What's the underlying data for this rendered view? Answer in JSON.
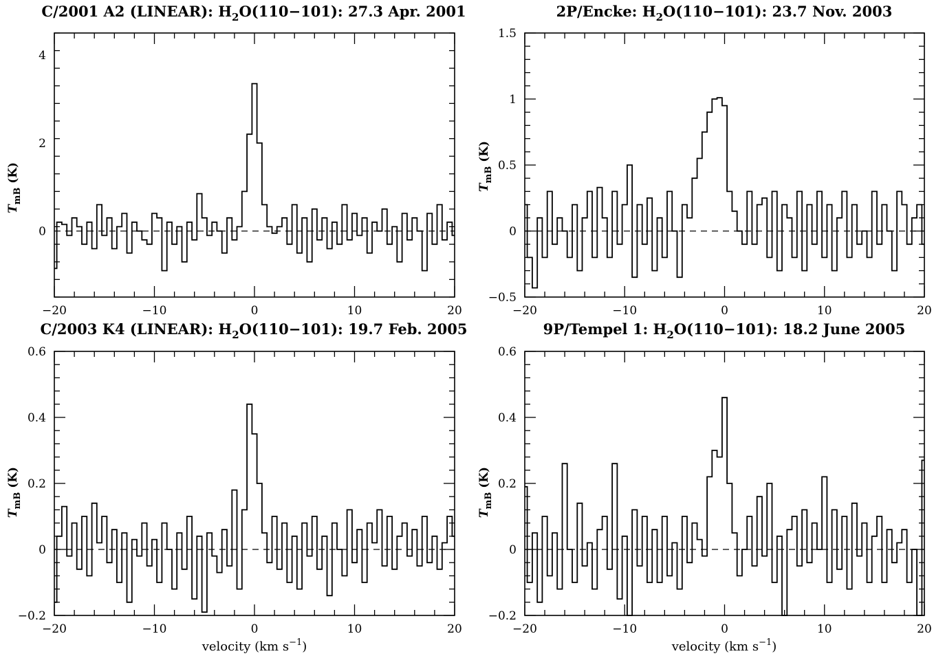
{
  "figure": {
    "xlabel": "velocity (km s",
    "xlabel_sup": "−1",
    "xlabel_close": ")"
  },
  "chart_data": [
    {
      "type": "line",
      "title_prefix": "C/2001 A2 (LINEAR): H",
      "title_sub": "2",
      "title_suffix": "O(110−101): 27.3 Apr. 2001",
      "ylabel": "T",
      "ylabel_sub": "mB",
      "ylabel_unit": " (K)",
      "xlim": [
        -20,
        20
      ],
      "ylim": [
        -1.5,
        4.5
      ],
      "xticks": [
        -20,
        -10,
        0,
        10,
        20
      ],
      "xtick_labels": [
        "−20",
        "−10",
        "0",
        "10",
        "20"
      ],
      "yticks": [
        0,
        2,
        4
      ],
      "ytick_labels": [
        "0",
        "2",
        "4"
      ],
      "zero_line": true,
      "series": [
        {
          "x": [
            -20,
            -19.5,
            -19,
            -18.5,
            -18,
            -17.5,
            -17,
            -16.5,
            -16,
            -15.5,
            -15,
            -14.5,
            -14,
            -13.5,
            -13,
            -12.5,
            -12,
            -11.5,
            -11,
            -10.5,
            -10,
            -9.5,
            -9,
            -8.5,
            -8,
            -7.5,
            -7,
            -6.5,
            -6,
            -5.5,
            -5,
            -4.5,
            -4,
            -3.5,
            -3,
            -2.5,
            -2,
            -1.5,
            -1,
            -0.5,
            0,
            0.5,
            1,
            1.5,
            2,
            2.5,
            3,
            3.5,
            4,
            4.5,
            5,
            5.5,
            6,
            6.5,
            7,
            7.5,
            8,
            8.5,
            9,
            9.5,
            10,
            10.5,
            11,
            11.5,
            12,
            12.5,
            13,
            13.5,
            14,
            14.5,
            15,
            15.5,
            16,
            16.5,
            17,
            17.5,
            18,
            18.5,
            19,
            19.5,
            20
          ],
          "y": [
            -0.85,
            0.2,
            0.15,
            -0.1,
            0.3,
            0.1,
            -0.3,
            0.2,
            -0.4,
            0.6,
            -0.1,
            0.3,
            -0.4,
            0.1,
            0.4,
            -0.5,
            0.2,
            0.0,
            -0.2,
            -0.3,
            0.4,
            0.3,
            -0.9,
            0.2,
            -0.3,
            0.1,
            -0.7,
            0.2,
            -0.2,
            0.85,
            0.3,
            -0.1,
            0.2,
            0.0,
            -0.5,
            0.3,
            -0.2,
            0.1,
            0.9,
            2.2,
            3.35,
            2.0,
            0.6,
            0.1,
            -0.05,
            0.1,
            0.3,
            -0.3,
            0.6,
            -0.5,
            0.3,
            -0.7,
            0.5,
            -0.2,
            0.3,
            -0.4,
            0.2,
            -0.3,
            0.6,
            -0.2,
            0.4,
            -0.1,
            0.3,
            -0.5,
            0.2,
            0.0,
            0.5,
            -0.3,
            0.1,
            -0.7,
            0.4,
            -0.2,
            0.3,
            0.0,
            -0.9,
            0.4,
            -0.3,
            0.6,
            -0.2,
            0.2,
            -0.1
          ]
        }
      ]
    },
    {
      "type": "line",
      "title_prefix": "2P/Encke: H",
      "title_sub": "2",
      "title_suffix": "O(110−101): 23.7 Nov. 2003",
      "ylabel": "T",
      "ylabel_sub": "mB",
      "ylabel_unit": " (K)",
      "xlim": [
        -20,
        20
      ],
      "ylim": [
        -0.5,
        1.5
      ],
      "xticks": [
        -20,
        -10,
        0,
        10,
        20
      ],
      "xtick_labels": [
        "−20",
        "−10",
        "0",
        "10",
        "20"
      ],
      "yticks": [
        -0.5,
        0,
        0.5,
        1,
        1.5
      ],
      "ytick_labels": [
        "−0.5",
        "0",
        "0.5",
        "1",
        "1.5"
      ],
      "zero_line": true,
      "series": [
        {
          "x": [
            -20,
            -19.5,
            -19,
            -18.5,
            -18,
            -17.5,
            -17,
            -16.5,
            -16,
            -15.5,
            -15,
            -14.5,
            -14,
            -13.5,
            -13,
            -12.5,
            -12,
            -11.5,
            -11,
            -10.5,
            -10,
            -9.5,
            -9,
            -8.5,
            -8,
            -7.5,
            -7,
            -6.5,
            -6,
            -5.5,
            -5,
            -4.5,
            -4,
            -3.5,
            -3,
            -2.5,
            -2,
            -1.5,
            -1,
            -0.5,
            0,
            0.5,
            1,
            1.5,
            2,
            2.5,
            3,
            3.5,
            4,
            4.5,
            5,
            5.5,
            6,
            6.5,
            7,
            7.5,
            8,
            8.5,
            9,
            9.5,
            10,
            10.5,
            11,
            11.5,
            12,
            12.5,
            13,
            13.5,
            14,
            14.5,
            15,
            15.5,
            16,
            16.5,
            17,
            17.5,
            18,
            18.5,
            19,
            19.5,
            20
          ],
          "y": [
            0.2,
            -0.2,
            -0.43,
            0.1,
            -0.2,
            0.3,
            -0.1,
            0.1,
            0.0,
            -0.2,
            0.2,
            -0.3,
            0.1,
            0.3,
            -0.2,
            0.33,
            0.1,
            -0.2,
            0.3,
            -0.1,
            0.2,
            0.5,
            -0.35,
            0.2,
            -0.1,
            0.25,
            -0.3,
            0.1,
            -0.2,
            0.3,
            0.0,
            -0.35,
            0.2,
            0.1,
            0.4,
            0.55,
            0.75,
            0.9,
            1.0,
            1.01,
            0.95,
            0.3,
            0.15,
            0.0,
            -0.1,
            0.3,
            -0.1,
            0.2,
            0.25,
            -0.2,
            0.3,
            -0.3,
            0.2,
            0.1,
            -0.2,
            0.3,
            -0.3,
            0.2,
            -0.1,
            0.3,
            -0.2,
            0.2,
            -0.3,
            0.1,
            0.3,
            -0.2,
            0.2,
            -0.1,
            0.0,
            -0.2,
            0.3,
            -0.1,
            0.2,
            0.0,
            -0.3,
            0.3,
            0.2,
            -0.1,
            0.1,
            0.2,
            -0.1
          ]
        }
      ]
    },
    {
      "type": "line",
      "title_prefix": "C/2003 K4 (LINEAR): H",
      "title_sub": "2",
      "title_suffix": "O(110−101): 19.7 Feb. 2005",
      "ylabel": "T",
      "ylabel_sub": "mB",
      "ylabel_unit": " (K)",
      "xlim": [
        -20,
        20
      ],
      "ylim": [
        -0.2,
        0.6
      ],
      "xticks": [
        -20,
        -10,
        0,
        10,
        20
      ],
      "xtick_labels": [
        "−20",
        "−10",
        "0",
        "10",
        "20"
      ],
      "yticks": [
        -0.2,
        0,
        0.2,
        0.4,
        0.6
      ],
      "ytick_labels": [
        "−0.2",
        "0",
        "0.2",
        "0.4",
        "0.6"
      ],
      "zero_line": true,
      "series": [
        {
          "x": [
            -20,
            -19.5,
            -19,
            -18.5,
            -18,
            -17.5,
            -17,
            -16.5,
            -16,
            -15.5,
            -15,
            -14.5,
            -14,
            -13.5,
            -13,
            -12.5,
            -12,
            -11.5,
            -11,
            -10.5,
            -10,
            -9.5,
            -9,
            -8.5,
            -8,
            -7.5,
            -7,
            -6.5,
            -6,
            -5.5,
            -5,
            -4.5,
            -4,
            -3.5,
            -3,
            -2.5,
            -2,
            -1.5,
            -1,
            -0.5,
            0,
            0.5,
            1,
            1.5,
            2,
            2.5,
            3,
            3.5,
            4,
            4.5,
            5,
            5.5,
            6,
            6.5,
            7,
            7.5,
            8,
            8.5,
            9,
            9.5,
            10,
            10.5,
            11,
            11.5,
            12,
            12.5,
            13,
            13.5,
            14,
            14.5,
            15,
            15.5,
            16,
            16.5,
            17,
            17.5,
            18,
            18.5,
            19,
            19.5,
            20
          ],
          "y": [
            -0.16,
            0.04,
            0.13,
            -0.02,
            0.08,
            -0.06,
            0.1,
            -0.08,
            0.14,
            0.02,
            0.1,
            -0.04,
            0.06,
            -0.1,
            0.05,
            -0.16,
            0.03,
            -0.02,
            0.08,
            -0.05,
            0.03,
            -0.1,
            0.08,
            0.0,
            -0.12,
            0.05,
            -0.06,
            0.1,
            -0.15,
            0.04,
            -0.19,
            0.05,
            -0.02,
            -0.07,
            0.06,
            -0.05,
            0.18,
            -0.12,
            0.12,
            0.44,
            0.35,
            0.2,
            0.05,
            -0.04,
            0.1,
            -0.06,
            0.08,
            -0.1,
            0.04,
            -0.12,
            0.08,
            -0.02,
            0.1,
            -0.06,
            0.04,
            -0.14,
            0.08,
            0.0,
            -0.08,
            0.12,
            -0.04,
            0.06,
            -0.1,
            0.08,
            0.02,
            0.12,
            -0.05,
            0.1,
            -0.06,
            0.04,
            0.08,
            -0.02,
            0.06,
            -0.05,
            0.1,
            -0.04,
            0.04,
            -0.06,
            0.02,
            0.1,
            0.04
          ]
        }
      ]
    },
    {
      "type": "line",
      "title_prefix": "9P/Tempel 1: H",
      "title_sub": "2",
      "title_suffix": "O(110−101): 18.2 June 2005",
      "ylabel": "T",
      "ylabel_sub": "mB",
      "ylabel_unit": " (K)",
      "xlim": [
        -20,
        20
      ],
      "ylim": [
        -0.2,
        0.6
      ],
      "xticks": [
        -20,
        -10,
        0,
        10,
        20
      ],
      "xtick_labels": [
        "−20",
        "−10",
        "0",
        "10",
        "20"
      ],
      "yticks": [
        -0.2,
        0,
        0.2,
        0.4,
        0.6
      ],
      "ytick_labels": [
        "−0.2",
        "0",
        "0.2",
        "0.4",
        "0.6"
      ],
      "zero_line": true,
      "series": [
        {
          "x": [
            -20,
            -19.5,
            -19,
            -18.5,
            -18,
            -17.5,
            -17,
            -16.5,
            -16,
            -15.5,
            -15,
            -14.5,
            -14,
            -13.5,
            -13,
            -12.5,
            -12,
            -11.5,
            -11,
            -10.5,
            -10,
            -9.5,
            -9,
            -8.5,
            -8,
            -7.5,
            -7,
            -6.5,
            -6,
            -5.5,
            -5,
            -4.5,
            -4,
            -3.5,
            -3,
            -2.5,
            -2,
            -1.5,
            -1,
            -0.5,
            0,
            0.5,
            1,
            1.5,
            2,
            2.5,
            3,
            3.5,
            4,
            4.5,
            5,
            5.5,
            6,
            6.5,
            7,
            7.5,
            8,
            8.5,
            9,
            9.5,
            10,
            10.5,
            11,
            11.5,
            12,
            12.5,
            13,
            13.5,
            14,
            14.5,
            15,
            15.5,
            16,
            16.5,
            17,
            17.5,
            18,
            18.5,
            19,
            19.5,
            20
          ],
          "y": [
            0.19,
            -0.1,
            0.05,
            -0.16,
            0.1,
            -0.08,
            0.05,
            -0.12,
            0.26,
            0.0,
            -0.1,
            0.14,
            -0.05,
            0.02,
            -0.12,
            0.06,
            0.1,
            -0.06,
            0.26,
            -0.15,
            0.04,
            -0.2,
            0.12,
            -0.05,
            0.1,
            -0.1,
            0.06,
            -0.1,
            0.1,
            -0.08,
            0.02,
            -0.12,
            0.1,
            -0.04,
            0.08,
            0.03,
            -0.02,
            0.22,
            0.3,
            0.28,
            0.46,
            0.2,
            0.05,
            -0.08,
            0.0,
            0.1,
            -0.05,
            0.16,
            -0.02,
            0.2,
            -0.1,
            0.04,
            -0.2,
            0.06,
            0.1,
            -0.05,
            0.12,
            -0.04,
            0.08,
            0.0,
            0.22,
            -0.1,
            0.12,
            -0.06,
            0.1,
            -0.12,
            0.14,
            -0.02,
            0.08,
            -0.1,
            0.04,
            0.1,
            -0.1,
            0.06,
            -0.04,
            0.02,
            0.06,
            -0.1,
            0.0,
            -0.2,
            0.27
          ]
        }
      ]
    }
  ]
}
